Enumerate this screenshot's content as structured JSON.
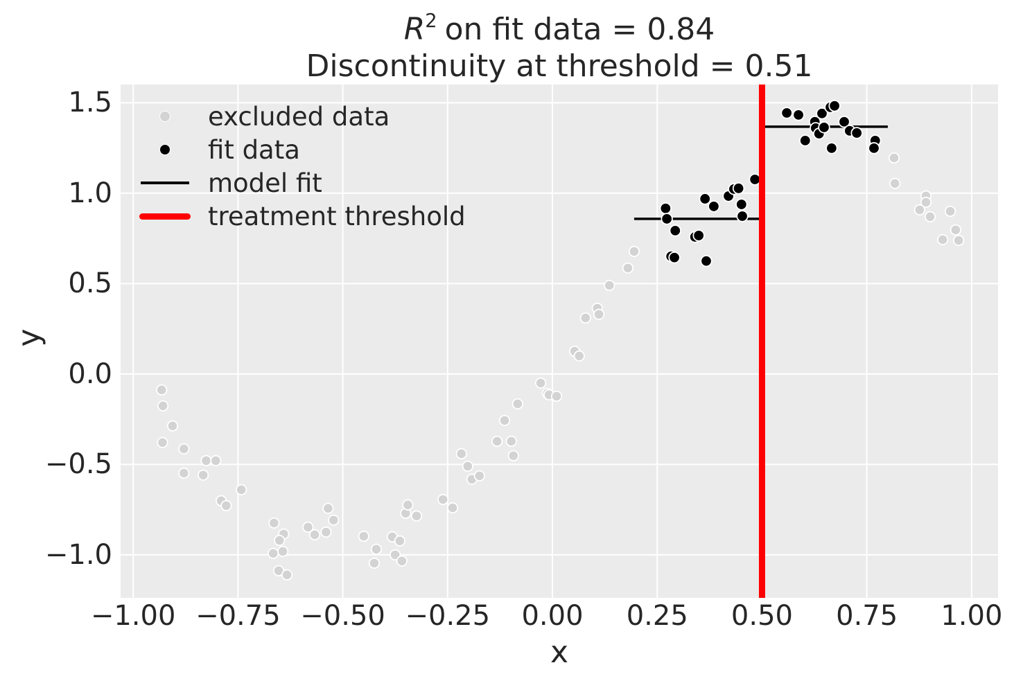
{
  "figure": {
    "title": {
      "var": "R",
      "sup": "2",
      "line1_rest": "on fit data = 0.84",
      "line2": "Discontinuity at threshold = 0.51"
    },
    "xlabel": "x",
    "ylabel": "y",
    "r_squared": 0.84,
    "discontinuity": 0.51
  },
  "colors": {
    "text": "#262626",
    "plot_background": "#ebebeb",
    "grid": "#ffffff",
    "excluded": "#d3d3d3",
    "fit": "#000000",
    "model_fit": "#000000",
    "threshold": "#ff0000",
    "marker_edge": "#ffffff"
  },
  "legend": {
    "items": [
      {
        "label": "excluded data",
        "marker": "dot",
        "color": "#d3d3d3",
        "name": "excluded-data"
      },
      {
        "label": "fit data",
        "marker": "dot",
        "color": "#000000",
        "name": "fit-data"
      },
      {
        "label": "model fit",
        "marker": "line",
        "color": "#000000",
        "name": "model-fit"
      },
      {
        "label": "treatment threshold",
        "marker": "thick-line",
        "color": "#ff0000",
        "name": "treatment-threshold"
      }
    ]
  },
  "chart_data": {
    "type": "scatter",
    "title": "R^2 on fit data = 0.84\nDiscontinuity at threshold = 0.51",
    "xlabel": "x",
    "ylabel": "y",
    "xlim": [
      -1.03,
      1.063
    ],
    "ylim": [
      -1.238,
      1.601
    ],
    "grid": true,
    "x_ticks": [
      {
        "value": -1.0,
        "label": "−1.00"
      },
      {
        "value": -0.75,
        "label": "−0.75"
      },
      {
        "value": -0.5,
        "label": "−0.50"
      },
      {
        "value": -0.25,
        "label": "−0.25"
      },
      {
        "value": 0.0,
        "label": "0.00"
      },
      {
        "value": 0.25,
        "label": "0.25"
      },
      {
        "value": 0.5,
        "label": "0.50"
      },
      {
        "value": 0.75,
        "label": "0.75"
      },
      {
        "value": 1.0,
        "label": "1.00"
      }
    ],
    "y_ticks": [
      {
        "value": 1.5,
        "label": "1.5"
      },
      {
        "value": 1.0,
        "label": "1.0"
      },
      {
        "value": 0.5,
        "label": "0.5"
      },
      {
        "value": 0.0,
        "label": "0.0"
      },
      {
        "value": -0.5,
        "label": "−0.5"
      },
      {
        "value": -1.0,
        "label": "−1.0"
      }
    ],
    "series": [
      {
        "name": "excluded data",
        "color": "#d3d3d3",
        "marker_radius": 7.2,
        "point_name": "excluded-data-point",
        "points": [
          [
            -0.932,
            -0.088
          ],
          [
            -0.929,
            -0.176
          ],
          [
            -0.906,
            -0.287
          ],
          [
            -0.93,
            -0.379
          ],
          [
            -0.879,
            -0.414
          ],
          [
            -0.826,
            -0.479
          ],
          [
            -0.803,
            -0.479
          ],
          [
            -0.879,
            -0.548
          ],
          [
            -0.833,
            -0.559
          ],
          [
            -0.742,
            -0.64
          ],
          [
            -0.79,
            -0.701
          ],
          [
            -0.778,
            -0.728
          ],
          [
            -0.664,
            -0.824
          ],
          [
            -0.641,
            -0.885
          ],
          [
            -0.651,
            -0.92
          ],
          [
            -0.666,
            -0.992
          ],
          [
            -0.643,
            -0.981
          ],
          [
            -0.653,
            -1.088
          ],
          [
            -0.633,
            -1.111
          ],
          [
            -0.583,
            -0.847
          ],
          [
            -0.567,
            -0.889
          ],
          [
            -0.54,
            -0.874
          ],
          [
            -0.535,
            -0.743
          ],
          [
            -0.522,
            -0.808
          ],
          [
            -0.45,
            -0.897
          ],
          [
            -0.425,
            -1.046
          ],
          [
            -0.42,
            -0.969
          ],
          [
            -0.382,
            -0.9
          ],
          [
            -0.375,
            -1.0
          ],
          [
            -0.364,
            -0.923
          ],
          [
            -0.359,
            -1.034
          ],
          [
            -0.35,
            -0.77
          ],
          [
            -0.345,
            -0.724
          ],
          [
            -0.324,
            -0.785
          ],
          [
            -0.261,
            -0.694
          ],
          [
            -0.238,
            -0.74
          ],
          [
            -0.217,
            -0.441
          ],
          [
            -0.202,
            -0.51
          ],
          [
            -0.192,
            -0.582
          ],
          [
            -0.174,
            -0.563
          ],
          [
            -0.132,
            -0.372
          ],
          [
            -0.114,
            -0.257
          ],
          [
            -0.098,
            -0.372
          ],
          [
            -0.093,
            -0.452
          ],
          [
            -0.083,
            -0.165
          ],
          [
            -0.028,
            -0.05
          ],
          [
            -0.012,
            -0.107
          ],
          [
            -0.008,
            -0.115
          ],
          [
            0.01,
            -0.123
          ],
          [
            0.053,
            0.126
          ],
          [
            0.064,
            0.1
          ],
          [
            0.079,
            0.31
          ],
          [
            0.107,
            0.364
          ],
          [
            0.111,
            0.33
          ],
          [
            0.136,
            0.49
          ],
          [
            0.18,
            0.586
          ],
          [
            0.195,
            0.678
          ],
          [
            0.815,
            1.195
          ],
          [
            0.817,
            1.054
          ],
          [
            0.891,
            0.985
          ],
          [
            0.891,
            0.95
          ],
          [
            0.876,
            0.908
          ],
          [
            0.901,
            0.87
          ],
          [
            0.949,
            0.9
          ],
          [
            0.962,
            0.797
          ],
          [
            0.931,
            0.743
          ],
          [
            0.969,
            0.739
          ]
        ]
      },
      {
        "name": "fit data",
        "color": "#000000",
        "marker_radius": 7.8,
        "point_name": "fit-data-point",
        "points": [
          [
            0.27,
            0.916
          ],
          [
            0.273,
            0.858
          ],
          [
            0.293,
            0.793
          ],
          [
            0.283,
            0.651
          ],
          [
            0.291,
            0.644
          ],
          [
            0.34,
            0.758
          ],
          [
            0.349,
            0.766
          ],
          [
            0.367,
            0.625
          ],
          [
            0.364,
            0.969
          ],
          [
            0.385,
            0.927
          ],
          [
            0.42,
            0.984
          ],
          [
            0.433,
            1.023
          ],
          [
            0.444,
            1.027
          ],
          [
            0.451,
            0.938
          ],
          [
            0.453,
            0.873
          ],
          [
            0.483,
            1.076
          ],
          [
            0.559,
            1.444
          ],
          [
            0.587,
            1.433
          ],
          [
            0.603,
            1.291
          ],
          [
            0.626,
            1.395
          ],
          [
            0.628,
            1.36
          ],
          [
            0.636,
            1.329
          ],
          [
            0.643,
            1.441
          ],
          [
            0.648,
            1.364
          ],
          [
            0.663,
            1.475
          ],
          [
            0.673,
            1.483
          ],
          [
            0.666,
            1.249
          ],
          [
            0.696,
            1.395
          ],
          [
            0.709,
            1.345
          ],
          [
            0.726,
            1.333
          ],
          [
            0.77,
            1.291
          ],
          [
            0.767,
            1.249
          ]
        ]
      }
    ],
    "model_fit": {
      "color": "#000000",
      "segments": [
        {
          "x1": 0.195,
          "x2": 0.5,
          "y": 0.858
        },
        {
          "x1": 0.5,
          "x2": 0.8,
          "y": 1.368
        }
      ]
    },
    "threshold": {
      "x": 0.5,
      "color": "#ff0000"
    }
  }
}
